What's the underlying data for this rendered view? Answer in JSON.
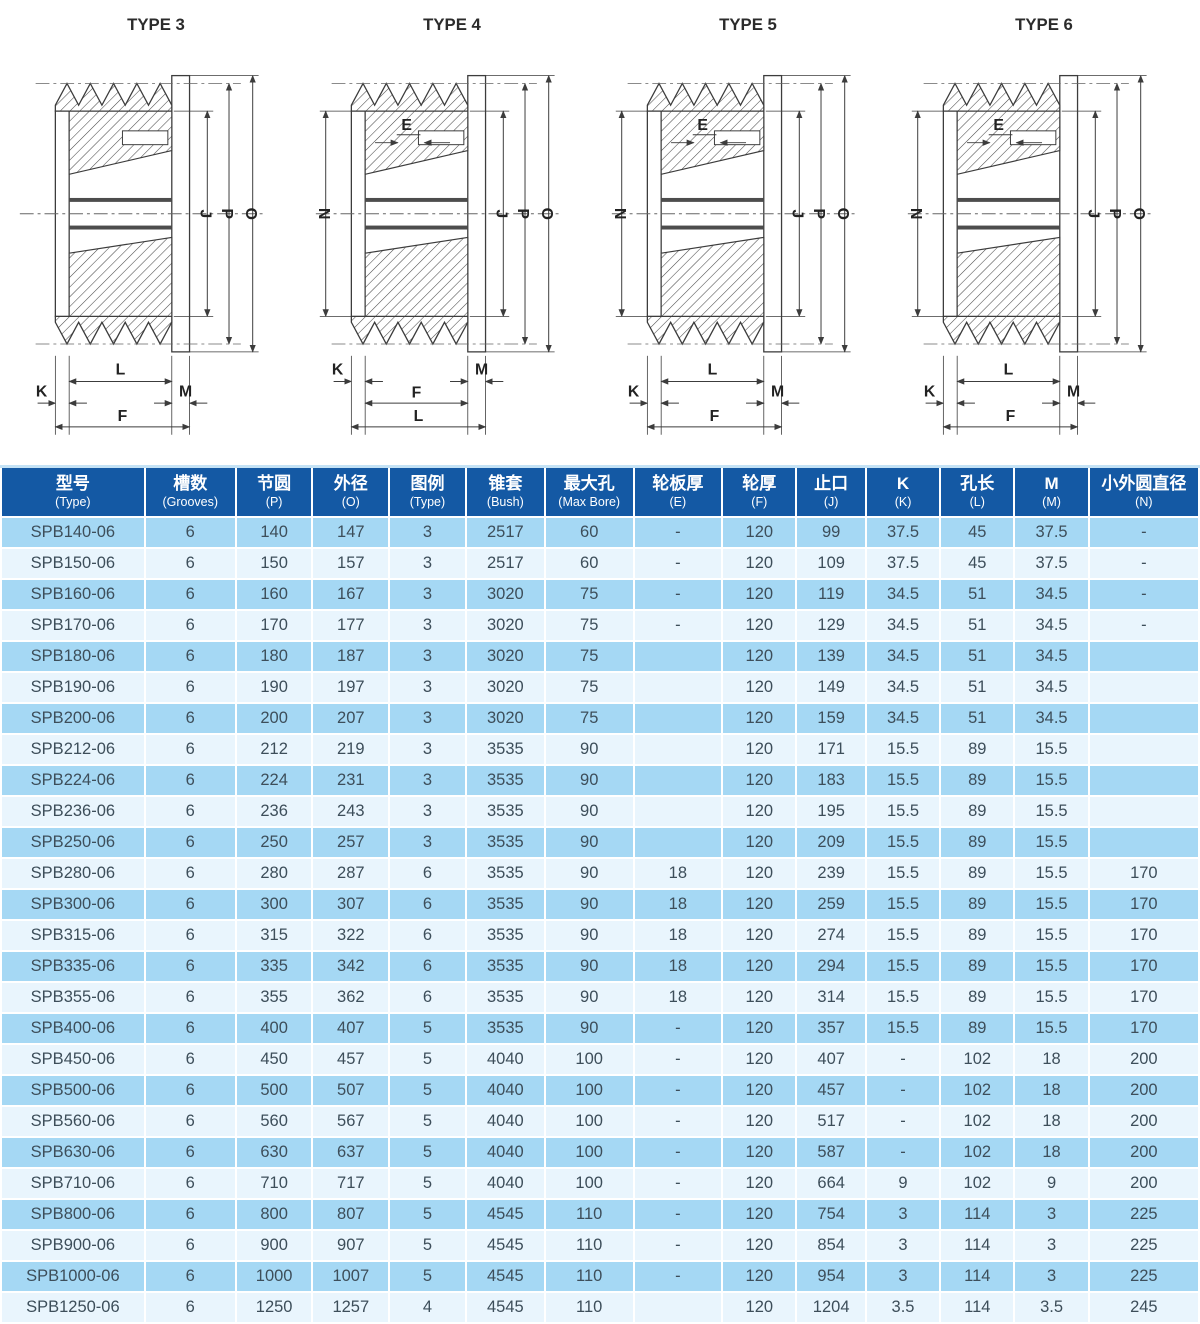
{
  "colors": {
    "header_bg": "#1459a4",
    "row_odd": "#a5d8f4",
    "row_even": "#e9f5fd",
    "header_text": "#ffffff",
    "cell_text": "#3d4e5a"
  },
  "dim_labels": {
    "E": "E",
    "N": "N",
    "J": "J",
    "P": "P",
    "O": "O",
    "K": "K",
    "L": "L",
    "M": "M",
    "F": "F"
  },
  "diagrams": [
    {
      "id": "type-3",
      "title": "TYPE 3",
      "has_n": false,
      "has_e": false,
      "bottom_order": "LKMF"
    },
    {
      "id": "type-4",
      "title": "TYPE 4",
      "has_n": true,
      "has_e": true,
      "bottom_order": "KMFL"
    },
    {
      "id": "type-5",
      "title": "TYPE 5",
      "has_n": true,
      "has_e": true,
      "bottom_order": "LKMF"
    },
    {
      "id": "type-6",
      "title": "TYPE 6",
      "has_n": true,
      "has_e": true,
      "bottom_order": "LKMF"
    }
  ],
  "table": {
    "columns": [
      {
        "zh": "型号",
        "en": "(Type)"
      },
      {
        "zh": "槽数",
        "en": "(Grooves)"
      },
      {
        "zh": "节圆",
        "en": "(P)"
      },
      {
        "zh": "外径",
        "en": "(O)"
      },
      {
        "zh": "图例",
        "en": "(Type)"
      },
      {
        "zh": "锥套",
        "en": "(Bush)"
      },
      {
        "zh": "最大孔",
        "en": "(Max Bore)"
      },
      {
        "zh": "轮板厚",
        "en": "(E)"
      },
      {
        "zh": "轮厚",
        "en": "(F)"
      },
      {
        "zh": "止口",
        "en": "(J)"
      },
      {
        "zh": "K",
        "en": "(K)"
      },
      {
        "zh": "孔长",
        "en": "(L)"
      },
      {
        "zh": "M",
        "en": "(M)"
      },
      {
        "zh": "小外圆直径",
        "en": "(N)"
      }
    ],
    "rows": [
      [
        "SPB140-06",
        "6",
        "140",
        "147",
        "3",
        "2517",
        "60",
        "-",
        "120",
        "99",
        "37.5",
        "45",
        "37.5",
        "-"
      ],
      [
        "SPB150-06",
        "6",
        "150",
        "157",
        "3",
        "2517",
        "60",
        "-",
        "120",
        "109",
        "37.5",
        "45",
        "37.5",
        "-"
      ],
      [
        "SPB160-06",
        "6",
        "160",
        "167",
        "3",
        "3020",
        "75",
        "-",
        "120",
        "119",
        "34.5",
        "51",
        "34.5",
        "-"
      ],
      [
        "SPB170-06",
        "6",
        "170",
        "177",
        "3",
        "3020",
        "75",
        "-",
        "120",
        "129",
        "34.5",
        "51",
        "34.5",
        "-"
      ],
      [
        "SPB180-06",
        "6",
        "180",
        "187",
        "3",
        "3020",
        "75",
        "",
        "120",
        "139",
        "34.5",
        "51",
        "34.5",
        ""
      ],
      [
        "SPB190-06",
        "6",
        "190",
        "197",
        "3",
        "3020",
        "75",
        "",
        "120",
        "149",
        "34.5",
        "51",
        "34.5",
        ""
      ],
      [
        "SPB200-06",
        "6",
        "200",
        "207",
        "3",
        "3020",
        "75",
        "",
        "120",
        "159",
        "34.5",
        "51",
        "34.5",
        ""
      ],
      [
        "SPB212-06",
        "6",
        "212",
        "219",
        "3",
        "3535",
        "90",
        "",
        "120",
        "171",
        "15.5",
        "89",
        "15.5",
        ""
      ],
      [
        "SPB224-06",
        "6",
        "224",
        "231",
        "3",
        "3535",
        "90",
        "",
        "120",
        "183",
        "15.5",
        "89",
        "15.5",
        ""
      ],
      [
        "SPB236-06",
        "6",
        "236",
        "243",
        "3",
        "3535",
        "90",
        "",
        "120",
        "195",
        "15.5",
        "89",
        "15.5",
        ""
      ],
      [
        "SPB250-06",
        "6",
        "250",
        "257",
        "3",
        "3535",
        "90",
        "",
        "120",
        "209",
        "15.5",
        "89",
        "15.5",
        ""
      ],
      [
        "SPB280-06",
        "6",
        "280",
        "287",
        "6",
        "3535",
        "90",
        "18",
        "120",
        "239",
        "15.5",
        "89",
        "15.5",
        "170"
      ],
      [
        "SPB300-06",
        "6",
        "300",
        "307",
        "6",
        "3535",
        "90",
        "18",
        "120",
        "259",
        "15.5",
        "89",
        "15.5",
        "170"
      ],
      [
        "SPB315-06",
        "6",
        "315",
        "322",
        "6",
        "3535",
        "90",
        "18",
        "120",
        "274",
        "15.5",
        "89",
        "15.5",
        "170"
      ],
      [
        "SPB335-06",
        "6",
        "335",
        "342",
        "6",
        "3535",
        "90",
        "18",
        "120",
        "294",
        "15.5",
        "89",
        "15.5",
        "170"
      ],
      [
        "SPB355-06",
        "6",
        "355",
        "362",
        "6",
        "3535",
        "90",
        "18",
        "120",
        "314",
        "15.5",
        "89",
        "15.5",
        "170"
      ],
      [
        "SPB400-06",
        "6",
        "400",
        "407",
        "5",
        "3535",
        "90",
        "-",
        "120",
        "357",
        "15.5",
        "89",
        "15.5",
        "170"
      ],
      [
        "SPB450-06",
        "6",
        "450",
        "457",
        "5",
        "4040",
        "100",
        "-",
        "120",
        "407",
        "-",
        "102",
        "18",
        "200"
      ],
      [
        "SPB500-06",
        "6",
        "500",
        "507",
        "5",
        "4040",
        "100",
        "-",
        "120",
        "457",
        "-",
        "102",
        "18",
        "200"
      ],
      [
        "SPB560-06",
        "6",
        "560",
        "567",
        "5",
        "4040",
        "100",
        "-",
        "120",
        "517",
        "-",
        "102",
        "18",
        "200"
      ],
      [
        "SPB630-06",
        "6",
        "630",
        "637",
        "5",
        "4040",
        "100",
        "-",
        "120",
        "587",
        "-",
        "102",
        "18",
        "200"
      ],
      [
        "SPB710-06",
        "6",
        "710",
        "717",
        "5",
        "4040",
        "100",
        "-",
        "120",
        "664",
        "9",
        "102",
        "9",
        "200"
      ],
      [
        "SPB800-06",
        "6",
        "800",
        "807",
        "5",
        "4545",
        "110",
        "-",
        "120",
        "754",
        "3",
        "114",
        "3",
        "225"
      ],
      [
        "SPB900-06",
        "6",
        "900",
        "907",
        "5",
        "4545",
        "110",
        "-",
        "120",
        "854",
        "3",
        "114",
        "3",
        "225"
      ],
      [
        "SPB1000-06",
        "6",
        "1000",
        "1007",
        "5",
        "4545",
        "110",
        "-",
        "120",
        "954",
        "3",
        "114",
        "3",
        "225"
      ],
      [
        "SPB1250-06",
        "6",
        "1250",
        "1257",
        "4",
        "4545",
        "110",
        "",
        "120",
        "1204",
        "3.5",
        "114",
        "3.5",
        "245"
      ]
    ]
  }
}
